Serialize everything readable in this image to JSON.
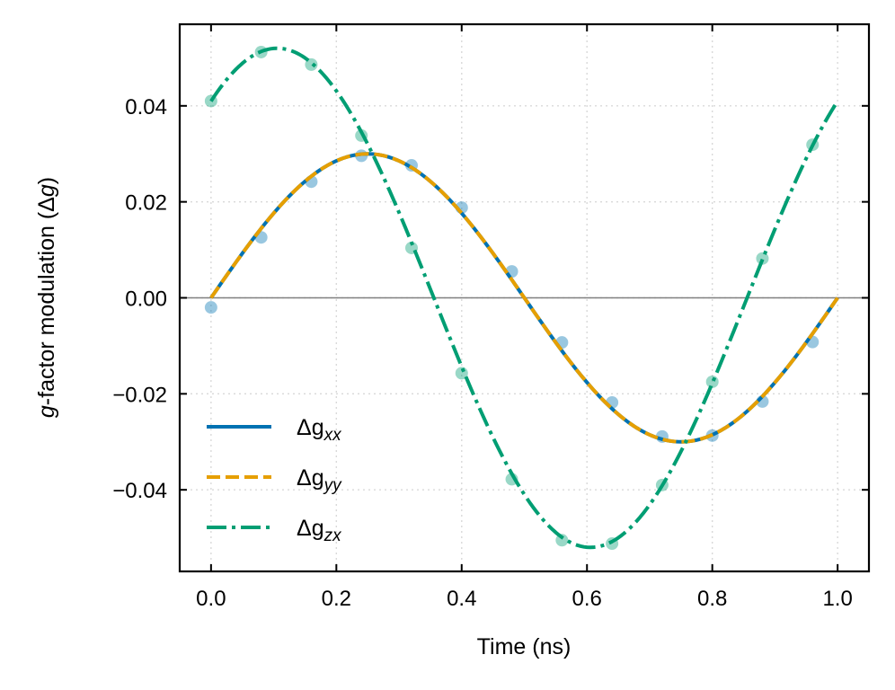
{
  "chart_data": {
    "type": "line",
    "title": "",
    "xlabel": "Time (ns)",
    "ylabel_italic": "g",
    "ylabel_rest": "-factor modulation (Δ",
    "ylabel_g": "g",
    "ylabel_close": ")",
    "xlim": [
      -0.05,
      1.05
    ],
    "ylim": [
      -0.057,
      0.057
    ],
    "xticks": [
      0.0,
      0.2,
      0.4,
      0.6,
      0.8,
      1.0
    ],
    "xtick_labels": [
      "0.0",
      "0.2",
      "0.4",
      "0.6",
      "0.8",
      "1.0"
    ],
    "yticks": [
      0.04,
      0.02,
      0.0,
      -0.02,
      -0.04
    ],
    "ytick_labels": [
      "0.04",
      "0.02",
      "0.00",
      "−0.02",
      "−0.04"
    ],
    "grid": true,
    "zero_line": true,
    "legend_position": "lower-left",
    "series": [
      {
        "name": "Δg_xx",
        "label_main": "Δg",
        "label_sub": "xx",
        "color": "#0072b2",
        "style": "solid",
        "model": {
          "amplitude": 0.03,
          "frequency_GHz": 1.0,
          "phase_deg": 0
        },
        "marker_x": [
          0.0,
          0.08,
          0.16,
          0.24,
          0.32,
          0.4,
          0.48,
          0.56,
          0.64,
          0.72,
          0.8,
          0.88,
          0.96
        ],
        "marker_y": [
          -0.002,
          0.0126,
          0.0242,
          0.0296,
          0.0276,
          0.0188,
          0.0055,
          -0.0093,
          -0.0218,
          -0.0289,
          -0.0287,
          -0.0216,
          -0.0092
        ]
      },
      {
        "name": "Δg_yy",
        "label_main": "Δg",
        "label_sub": "yy",
        "color": "#e69f00",
        "style": "dashed",
        "model": {
          "amplitude": 0.03,
          "frequency_GHz": 1.0,
          "phase_deg": 0
        },
        "marker_x": [],
        "marker_y": []
      },
      {
        "name": "Δg_zx",
        "label_main": "Δg",
        "label_sub": "zx",
        "color": "#009e73",
        "style": "dashdot",
        "model": {
          "amplitude": 0.052,
          "frequency_GHz": 1.0,
          "phase_deg": 52
        },
        "marker_x": [
          0.0,
          0.08,
          0.16,
          0.24,
          0.32,
          0.4,
          0.48,
          0.56,
          0.64,
          0.72,
          0.8,
          0.88,
          0.96
        ],
        "marker_y": [
          0.041,
          0.0512,
          0.0486,
          0.0338,
          0.0104,
          -0.0157,
          -0.0378,
          -0.0505,
          -0.0512,
          -0.039,
          -0.0175,
          0.0082,
          0.0319
        ]
      }
    ]
  }
}
